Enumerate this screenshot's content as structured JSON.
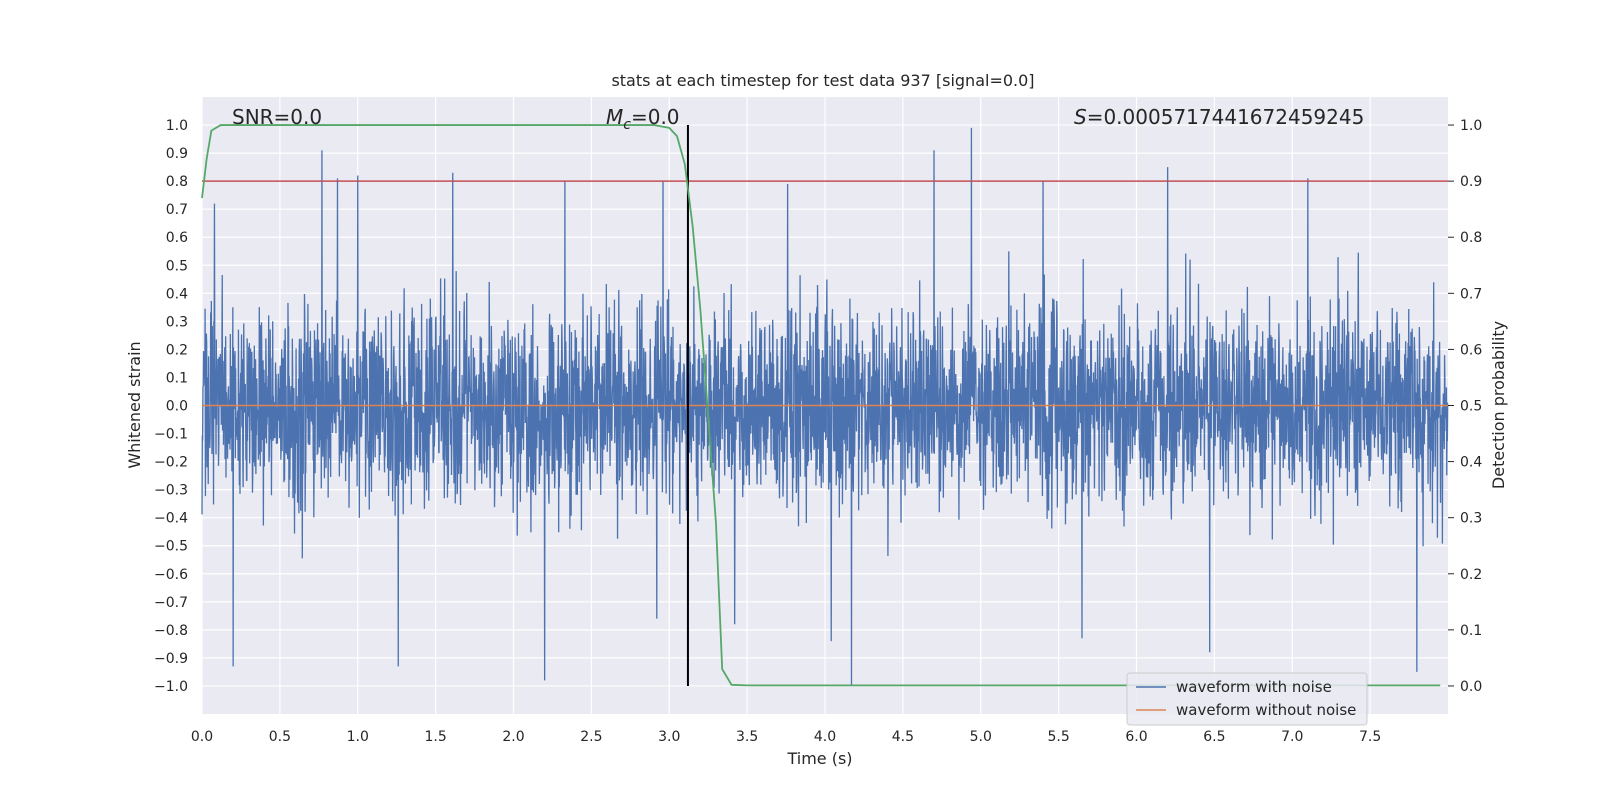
{
  "chart_data": {
    "type": "line",
    "title": "stats at each timestep for test data 937 [signal=0.0]",
    "xlabel": "Time (s)",
    "ylabel": "Whitened strain",
    "ylabel_right": "Detection probability",
    "xlim": [
      0,
      8
    ],
    "ylim": [
      -1.1,
      1.1
    ],
    "ylim_right": [
      -0.05,
      1.05
    ],
    "x_ticks": [
      "0.0",
      "0.5",
      "1.0",
      "1.5",
      "2.0",
      "2.5",
      "3.0",
      "3.5",
      "4.0",
      "4.5",
      "5.0",
      "5.5",
      "6.0",
      "6.5",
      "7.0",
      "7.5"
    ],
    "y_ticks": [
      "1.0",
      "0.9",
      "0.8",
      "0.7",
      "0.6",
      "0.5",
      "0.4",
      "0.3",
      "0.2",
      "0.1",
      "0.0",
      "−0.1",
      "−0.2",
      "−0.3",
      "−0.4",
      "−0.5",
      "−0.6",
      "−0.7",
      "−0.8",
      "−0.9",
      "−1.0"
    ],
    "y_right_ticks": [
      "1.0",
      "0.9",
      "0.8",
      "0.7",
      "0.6",
      "0.5",
      "0.4",
      "0.3",
      "0.2",
      "0.1",
      "0.0"
    ],
    "grid": true,
    "legend_position": "bottom-right",
    "annotations": {
      "snr": "SNR=0.0",
      "mc_symbol": "M",
      "mc_subscript": "c",
      "mc_value": "=0.0",
      "s_symbol": "S",
      "s_value": "=0.0005717441672459245"
    },
    "series": [
      {
        "name": "waveform with noise",
        "color": "#4c72b0",
        "axis": "left",
        "description_envelope": "dense noise, typical amplitude about ±0.5",
        "peaks_positive": [
          [
            0.08,
            0.72
          ],
          [
            0.77,
            0.91
          ],
          [
            0.87,
            0.81
          ],
          [
            1.0,
            0.82
          ],
          [
            1.61,
            0.83
          ],
          [
            2.33,
            0.8
          ],
          [
            2.96,
            0.8
          ],
          [
            3.76,
            0.79
          ],
          [
            4.7,
            0.91
          ],
          [
            4.94,
            0.99
          ],
          [
            5.4,
            0.8
          ],
          [
            6.2,
            0.85
          ],
          [
            7.1,
            0.81
          ]
        ],
        "peaks_negative": [
          [
            0.2,
            -0.93
          ],
          [
            1.26,
            -0.93
          ],
          [
            2.2,
            -0.98
          ],
          [
            2.92,
            -0.76
          ],
          [
            3.42,
            -0.78
          ],
          [
            4.04,
            -0.84
          ],
          [
            4.17,
            -1.0
          ],
          [
            5.65,
            -0.83
          ],
          [
            6.47,
            -0.88
          ],
          [
            7.8,
            -0.95
          ]
        ]
      },
      {
        "name": "waveform without noise",
        "color": "#dd8452",
        "axis": "left",
        "x": [
          0,
          8
        ],
        "values": [
          0,
          0
        ]
      },
      {
        "color": "#55a868",
        "axis": "right",
        "x": [
          0.0,
          0.03,
          0.06,
          0.12,
          0.3,
          1.0,
          2.0,
          2.9,
          3.0,
          3.05,
          3.1,
          3.15,
          3.2,
          3.25,
          3.3,
          3.34,
          3.4,
          3.5,
          4.0,
          5.0,
          6.0,
          7.0,
          7.95
        ],
        "values": [
          0.87,
          0.94,
          0.99,
          1.0,
          1.0,
          1.0,
          1.0,
          1.0,
          0.995,
          0.98,
          0.93,
          0.82,
          0.67,
          0.48,
          0.29,
          0.03,
          0.002,
          0.001,
          0.001,
          0.001,
          0.001,
          0.001,
          0.001
        ]
      }
    ],
    "reference_lines": [
      {
        "type": "horizontal",
        "axis": "right",
        "value": 0.9,
        "color": "#c44e52"
      },
      {
        "type": "vertical",
        "value": 3.12,
        "ymin": -1.0,
        "ymax": 1.0,
        "color": "#000000"
      }
    ]
  }
}
